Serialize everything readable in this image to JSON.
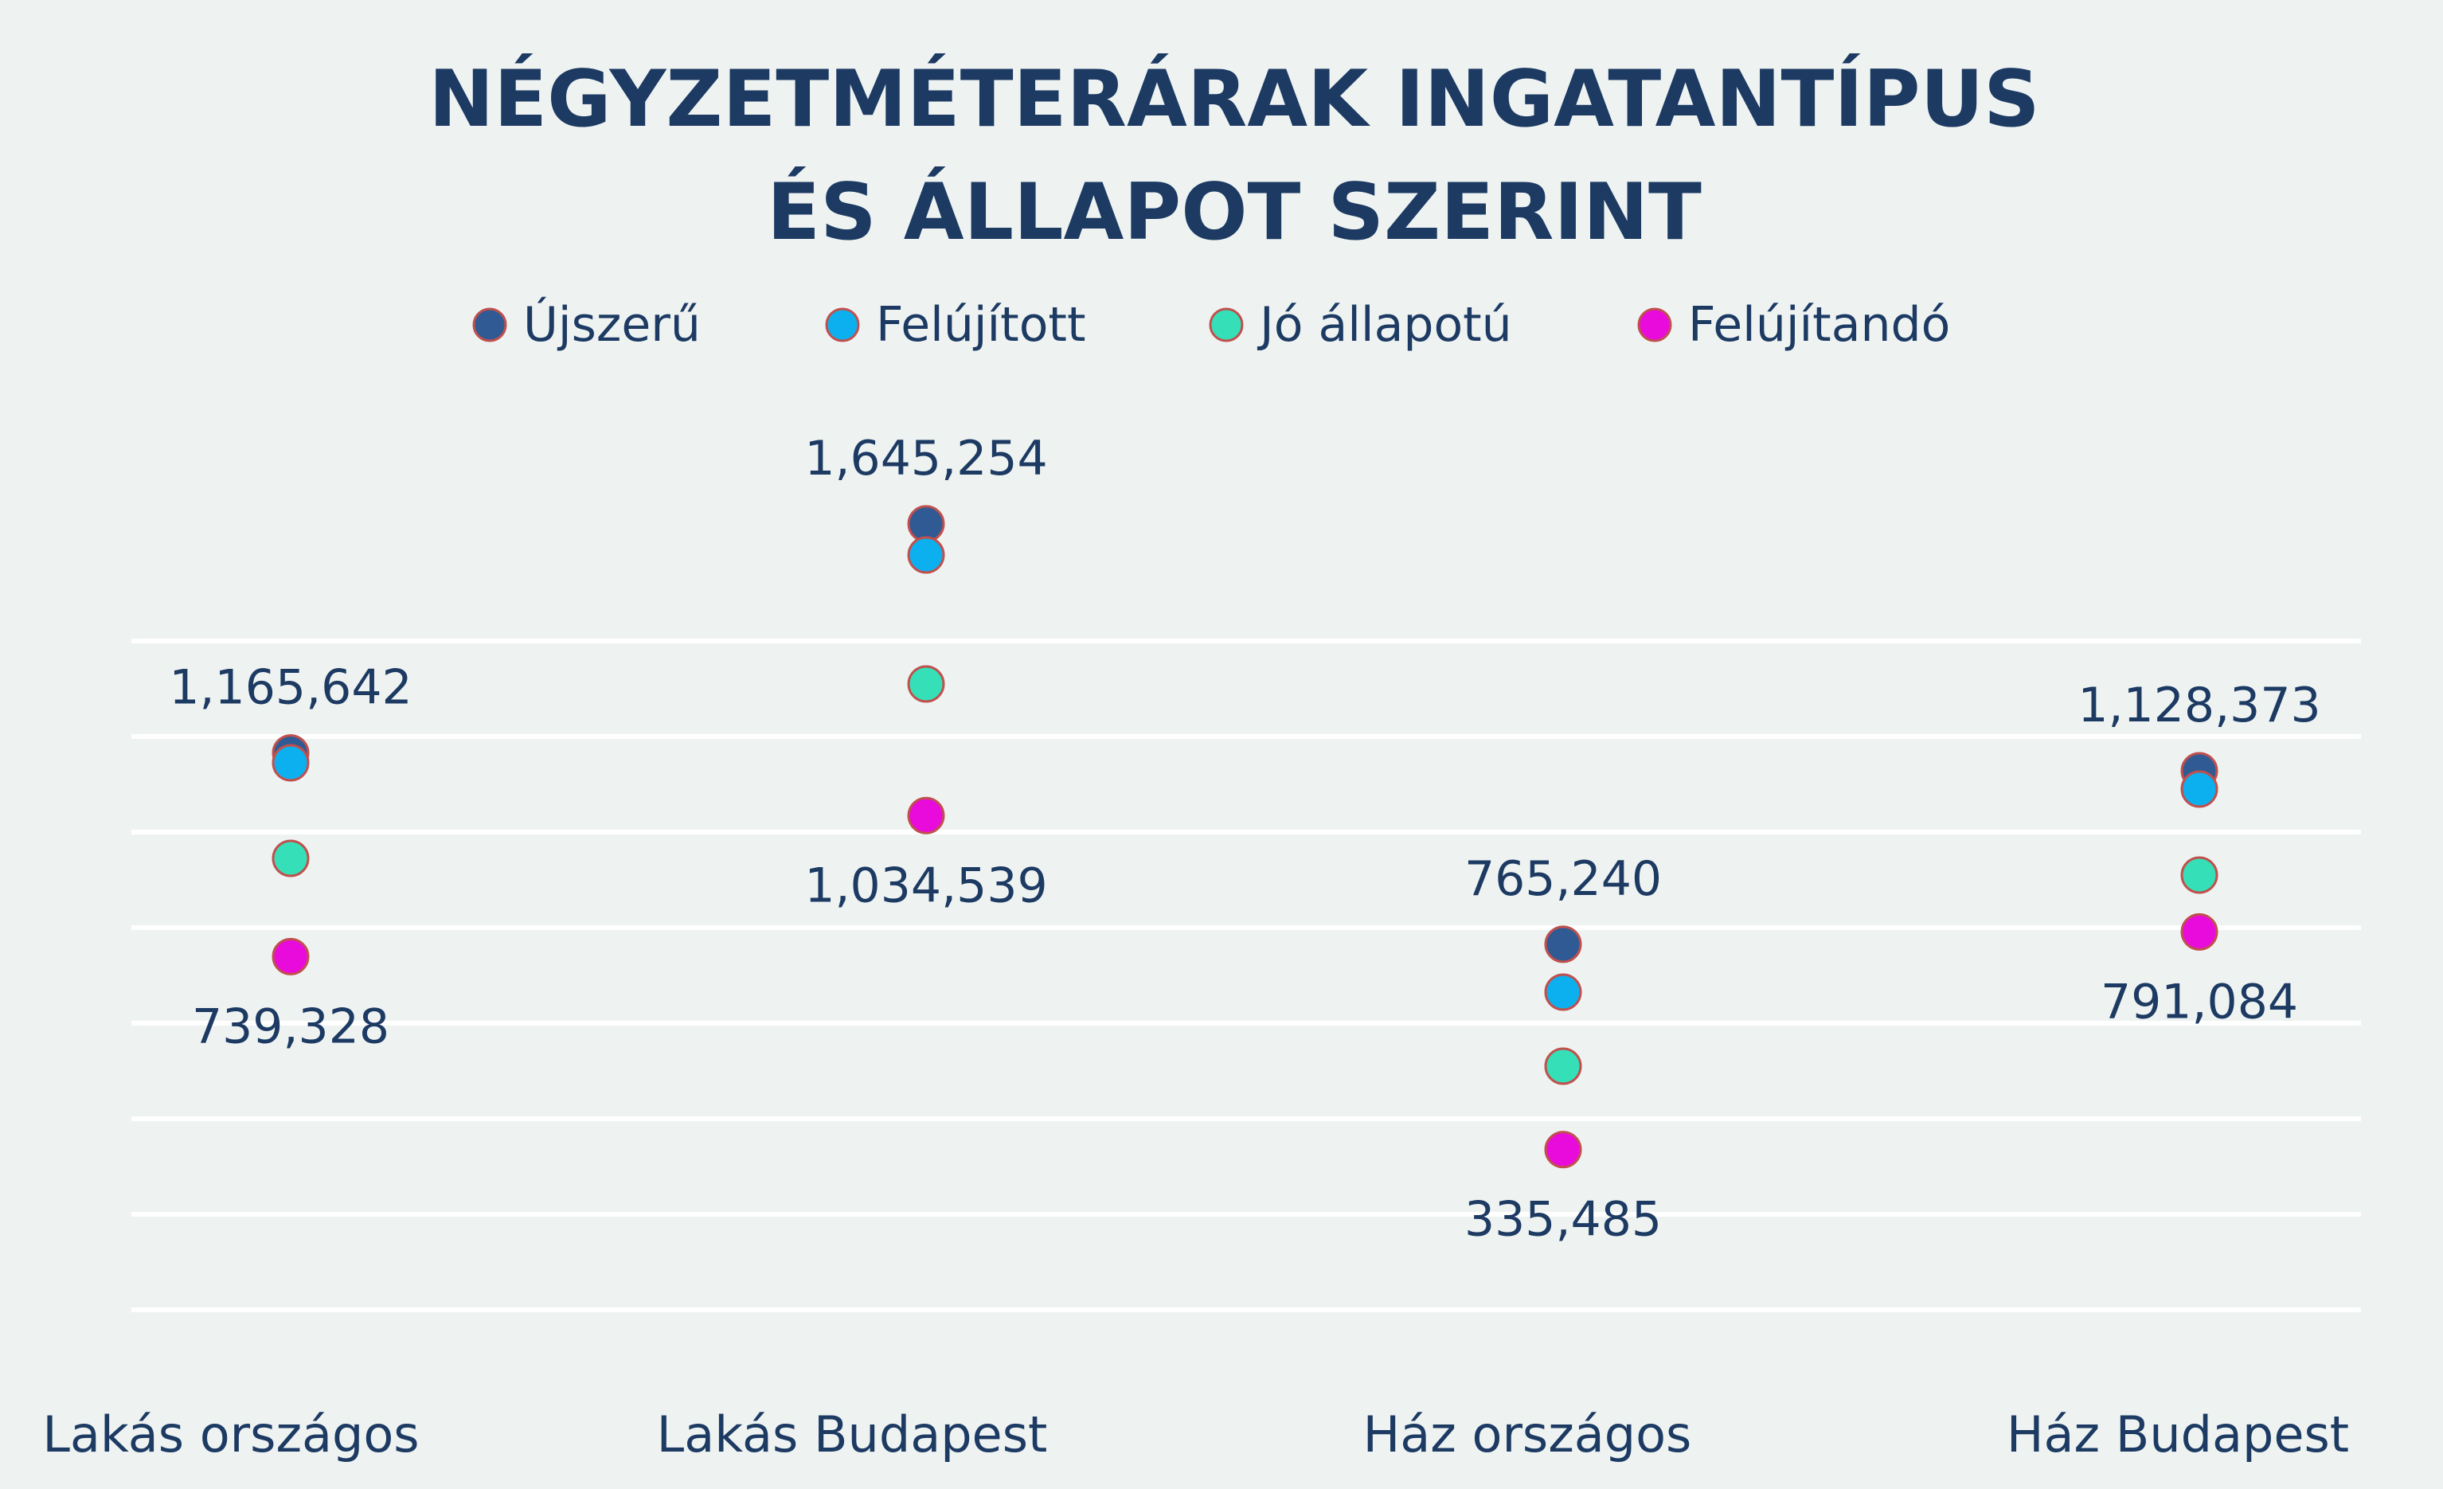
{
  "chart_data": {
    "type": "scatter",
    "title_lines": [
      "NÉGYZETMÉTERÁRAK INGATANTÍPUS",
      "ÉS ÁLLAPOT SZERINT"
    ],
    "categories": [
      "Lakás országos",
      "Lakás Budapest",
      "Ház országos",
      "Ház Budapest"
    ],
    "series": [
      {
        "name": "Újszerű",
        "color": "#2f5a93",
        "values": [
          1165642,
          1645254,
          765240,
          1128373
        ]
      },
      {
        "name": "Felújított",
        "color": "#0db0ef",
        "values": [
          1145000,
          1580000,
          665000,
          1090000
        ]
      },
      {
        "name": "Jó állapotú",
        "color": "#35e0b8",
        "values": [
          945000,
          1310000,
          510000,
          910000
        ]
      },
      {
        "name": "Felújítandó",
        "color": "#e80bdc",
        "values": [
          739328,
          1034539,
          335485,
          791084
        ]
      }
    ],
    "point_labels": [
      {
        "category": 0,
        "series": 0,
        "text": "1,165,642",
        "position": "above"
      },
      {
        "category": 0,
        "series": 3,
        "text": "739,328",
        "position": "below"
      },
      {
        "category": 1,
        "series": 0,
        "text": "1,645,254",
        "position": "above"
      },
      {
        "category": 1,
        "series": 3,
        "text": "1,034,539",
        "position": "below"
      },
      {
        "category": 2,
        "series": 0,
        "text": "765,240",
        "position": "above"
      },
      {
        "category": 2,
        "series": 3,
        "text": "335,485",
        "position": "below"
      },
      {
        "category": 3,
        "series": 0,
        "text": "1,128,373",
        "position": "above"
      },
      {
        "category": 3,
        "series": 3,
        "text": "791,084",
        "position": "below"
      }
    ],
    "ylim": [
      0,
      1800000
    ],
    "gridlines": [
      200000,
      400000,
      600000,
      800000,
      1000000,
      1200000,
      1400000
    ],
    "grid": true,
    "legend_position": "top",
    "y_axis_labels_shown": false
  }
}
